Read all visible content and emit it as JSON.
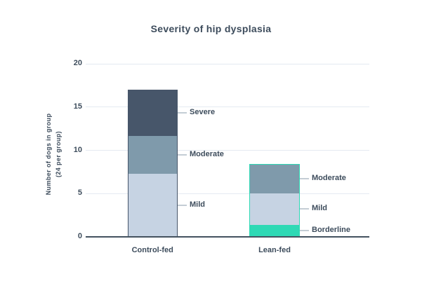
{
  "title": "Severity of hip dysplasia",
  "chart_data": {
    "type": "bar",
    "stacked": true,
    "title": "Severity of hip dysplasia",
    "ylabel": "Number of dogs in group (24 per group)",
    "ylabel_lines": [
      "Number of dogs in group",
      "(24 per group)"
    ],
    "ylim": [
      0,
      20
    ],
    "yticks": [
      0,
      5,
      10,
      15,
      20
    ],
    "grid": "horizontal",
    "legend_position": "direct-segment-labels",
    "categories": [
      "Control-fed",
      "Lean-fed"
    ],
    "series": [
      {
        "name": "Borderline",
        "color": "#2ed9b5",
        "values": [
          0,
          1.4
        ]
      },
      {
        "name": "Mild",
        "color": "#c6d3e3",
        "values": [
          7.3,
          3.7
        ]
      },
      {
        "name": "Moderate",
        "color": "#7f9aab",
        "values": [
          4.4,
          3.3
        ]
      },
      {
        "name": "Severe",
        "color": "#47566a",
        "values": [
          5.3,
          0
        ]
      }
    ],
    "bar_totals": [
      17.0,
      8.4
    ],
    "bar_outline_colors": [
      "#47566a",
      "#2ed9b5"
    ]
  },
  "colors": {
    "text": "#3d4c5c",
    "gridline": "#e4eaf1",
    "baseline": "#44525f",
    "leader": "#c4cdd5",
    "background": "#ffffff"
  }
}
